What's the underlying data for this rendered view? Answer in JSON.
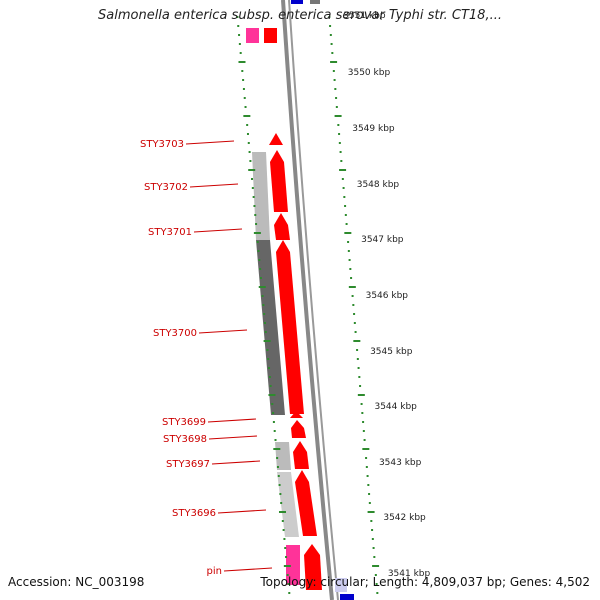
{
  "title": "Salmonella enterica subsp. enterica serovar Typhi str. CT18,...",
  "footer": {
    "accession": "Accession: NC_003198",
    "stats": "Topology: circular; Length: 4,809,037 bp; Genes: 4,502"
  },
  "kbp_ticks": [
    {
      "label": "3551 kbp"
    },
    {
      "label": "3550 kbp"
    },
    {
      "label": "3549 kbp"
    },
    {
      "label": "3548 kbp"
    },
    {
      "label": "3547 kbp"
    },
    {
      "label": "3546 kbp"
    },
    {
      "label": "3545 kbp"
    },
    {
      "label": "3544 kbp"
    },
    {
      "label": "3543 kbp"
    },
    {
      "label": "3542 kbp"
    },
    {
      "label": "3541 kbp"
    }
  ],
  "genes": [
    {
      "label": "STY3703"
    },
    {
      "label": "STY3702"
    },
    {
      "label": "STY3701"
    },
    {
      "label": "STY3700"
    },
    {
      "label": "STY3699"
    },
    {
      "label": "STY3698"
    },
    {
      "label": "STY3697"
    },
    {
      "label": "STY3696"
    },
    {
      "label": "pin"
    }
  ],
  "colors": {
    "gene": "#ff0000",
    "gene_dark": "#cc0000",
    "pink": "#ff3399",
    "backbone": "#888888",
    "gc_light": "#bbbbbb",
    "gc_dark": "#666666",
    "skew": "#2e8b2e",
    "blue": "#0000cc"
  }
}
